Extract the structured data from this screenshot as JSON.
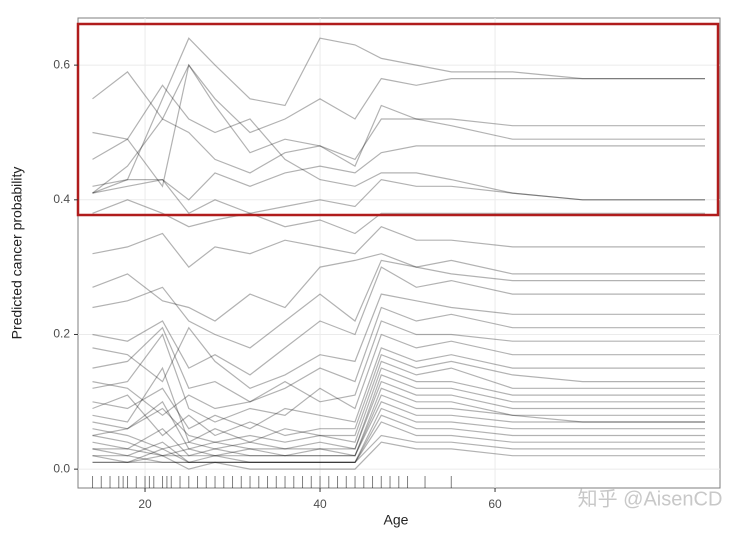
{
  "chart_data": {
    "type": "ice",
    "x_label": "Age",
    "y_label": "Predicted cancer probability",
    "watermark": "知乎 @AisenCD",
    "x": [
      14,
      18,
      22,
      25,
      28,
      32,
      36,
      40,
      44,
      47,
      51,
      55,
      62,
      70,
      84
    ],
    "line_color": "#000000",
    "line_opacity": 0.3,
    "grid": true,
    "xlim": [
      12.34,
      85.71
    ],
    "xticks": [
      20,
      40,
      60
    ],
    "ylim": [
      -0.028,
      0.67
    ],
    "yticks": [
      {
        "value": 0,
        "label": "0.0"
      },
      0.2,
      0.4,
      0.6
    ],
    "rug": [
      14,
      15,
      16,
      17,
      17.5,
      18,
      19,
      20,
      20.5,
      21,
      22,
      22.5,
      23,
      24,
      25,
      26,
      27,
      28,
      29,
      30,
      31,
      32,
      33,
      34,
      35,
      36,
      37,
      38,
      39,
      40,
      41,
      42,
      43,
      44,
      45,
      46,
      47,
      48,
      49,
      50,
      52,
      55
    ],
    "series": [
      {
        "values": [
          0.55,
          0.59,
          0.52,
          0.6,
          0.55,
          0.5,
          0.52,
          0.55,
          0.52,
          0.58,
          0.57,
          0.58,
          0.58,
          0.58,
          0.58
        ]
      },
      {
        "values": [
          0.41,
          0.43,
          0.55,
          0.64,
          0.6,
          0.55,
          0.54,
          0.64,
          0.63,
          0.61,
          0.6,
          0.59,
          0.59,
          0.58,
          0.58
        ]
      },
      {
        "values": [
          0.5,
          0.49,
          0.42,
          0.6,
          0.54,
          0.47,
          0.49,
          0.48,
          0.45,
          0.54,
          0.52,
          0.52,
          0.51,
          0.51,
          0.51
        ]
      },
      {
        "values": [
          0.41,
          0.45,
          0.52,
          0.5,
          0.46,
          0.44,
          0.47,
          0.48,
          0.46,
          0.52,
          0.52,
          0.51,
          0.49,
          0.49,
          0.49
        ]
      },
      {
        "values": [
          0.42,
          0.43,
          0.43,
          0.4,
          0.44,
          0.42,
          0.44,
          0.45,
          0.44,
          0.47,
          0.48,
          0.48,
          0.48,
          0.48,
          0.48
        ]
      },
      {
        "values": [
          0.46,
          0.49,
          0.57,
          0.52,
          0.5,
          0.52,
          0.46,
          0.43,
          0.42,
          0.44,
          0.44,
          0.43,
          0.41,
          0.4,
          0.4
        ]
      },
      {
        "values": [
          0.41,
          0.42,
          0.43,
          0.38,
          0.4,
          0.38,
          0.39,
          0.4,
          0.39,
          0.43,
          0.42,
          0.42,
          0.41,
          0.4,
          0.4
        ]
      },
      {
        "values": [
          0.38,
          0.4,
          0.38,
          0.36,
          0.37,
          0.38,
          0.36,
          0.37,
          0.35,
          0.38,
          0.38,
          0.38,
          0.38,
          0.38,
          0.38
        ]
      },
      {
        "values": [
          0.32,
          0.33,
          0.35,
          0.3,
          0.33,
          0.32,
          0.34,
          0.33,
          0.32,
          0.36,
          0.34,
          0.34,
          0.33,
          0.33,
          0.33
        ]
      },
      {
        "values": [
          0.27,
          0.29,
          0.25,
          0.24,
          0.22,
          0.26,
          0.24,
          0.3,
          0.31,
          0.32,
          0.3,
          0.31,
          0.29,
          0.29,
          0.29
        ]
      },
      {
        "values": [
          0.24,
          0.25,
          0.27,
          0.22,
          0.2,
          0.18,
          0.22,
          0.26,
          0.22,
          0.31,
          0.3,
          0.29,
          0.28,
          0.28,
          0.28
        ]
      },
      {
        "values": [
          0.2,
          0.19,
          0.22,
          0.15,
          0.17,
          0.14,
          0.18,
          0.22,
          0.2,
          0.3,
          0.27,
          0.28,
          0.26,
          0.26,
          0.26
        ]
      },
      {
        "values": [
          0.18,
          0.17,
          0.13,
          0.21,
          0.16,
          0.12,
          0.14,
          0.17,
          0.16,
          0.26,
          0.25,
          0.24,
          0.23,
          0.23,
          0.23
        ]
      },
      {
        "values": [
          0.15,
          0.16,
          0.21,
          0.12,
          0.13,
          0.1,
          0.12,
          0.15,
          0.13,
          0.24,
          0.22,
          0.23,
          0.21,
          0.21,
          0.21
        ]
      },
      {
        "values": [
          0.13,
          0.12,
          0.08,
          0.11,
          0.09,
          0.1,
          0.13,
          0.1,
          0.11,
          0.22,
          0.2,
          0.2,
          0.19,
          0.19,
          0.19
        ]
      },
      {
        "values": [
          0.12,
          0.13,
          0.2,
          0.09,
          0.07,
          0.09,
          0.08,
          0.12,
          0.09,
          0.2,
          0.18,
          0.19,
          0.17,
          0.17,
          0.17
        ]
      },
      {
        "values": [
          0.1,
          0.09,
          0.12,
          0.06,
          0.08,
          0.06,
          0.09,
          0.08,
          0.07,
          0.18,
          0.16,
          0.17,
          0.15,
          0.15,
          0.15
        ]
      },
      {
        "values": [
          0.09,
          0.11,
          0.05,
          0.08,
          0.05,
          0.07,
          0.05,
          0.06,
          0.06,
          0.17,
          0.15,
          0.16,
          0.14,
          0.13,
          0.13
        ]
      },
      {
        "values": [
          0.08,
          0.07,
          0.15,
          0.04,
          0.06,
          0.04,
          0.06,
          0.05,
          0.05,
          0.16,
          0.14,
          0.15,
          0.12,
          0.12,
          0.12
        ]
      },
      {
        "values": [
          0.07,
          0.06,
          0.09,
          0.05,
          0.04,
          0.05,
          0.04,
          0.05,
          0.04,
          0.15,
          0.13,
          0.13,
          0.11,
          0.11,
          0.11
        ]
      },
      {
        "values": [
          0.06,
          0.05,
          0.03,
          0.04,
          0.03,
          0.04,
          0.03,
          0.04,
          0.03,
          0.14,
          0.12,
          0.12,
          0.1,
          0.1,
          0.1
        ]
      },
      {
        "values": [
          0.05,
          0.06,
          0.1,
          0.03,
          0.04,
          0.03,
          0.03,
          0.03,
          0.03,
          0.13,
          0.11,
          0.11,
          0.09,
          0.09,
          0.09
        ]
      },
      {
        "values": [
          0.05,
          0.04,
          0.02,
          0.03,
          0.02,
          0.03,
          0.02,
          0.03,
          0.02,
          0.12,
          0.1,
          0.1,
          0.08,
          0.08,
          0.08
        ]
      },
      {
        "values": [
          0.04,
          0.03,
          0.06,
          0.02,
          0.03,
          0.02,
          0.02,
          0.02,
          0.02,
          0.11,
          0.09,
          0.09,
          0.08,
          0.07,
          0.07
        ]
      },
      {
        "values": [
          0.03,
          0.03,
          0.02,
          0.02,
          0.02,
          0.02,
          0.02,
          0.02,
          0.02,
          0.1,
          0.08,
          0.08,
          0.07,
          0.07,
          0.07
        ]
      },
      {
        "values": [
          0.03,
          0.02,
          0.04,
          0.01,
          0.02,
          0.01,
          0.01,
          0.01,
          0.01,
          0.09,
          0.07,
          0.07,
          0.06,
          0.06,
          0.06
        ]
      },
      {
        "values": [
          0.02,
          0.02,
          0.01,
          0.01,
          0.01,
          0.01,
          0.01,
          0.01,
          0.01,
          0.08,
          0.06,
          0.06,
          0.05,
          0.05,
          0.05
        ]
      },
      {
        "values": [
          0.02,
          0.01,
          0.03,
          0.01,
          0.01,
          0.01,
          0.01,
          0.01,
          0.01,
          0.07,
          0.05,
          0.05,
          0.04,
          0.04,
          0.04
        ]
      },
      {
        "values": [
          0.01,
          0.01,
          0.01,
          0.01,
          0.01,
          0.01,
          0.01,
          0.01,
          0.01,
          0.05,
          0.04,
          0.04,
          0.03,
          0.03,
          0.03
        ]
      },
      {
        "values": [
          0.01,
          0.01,
          0.02,
          0.0,
          0.01,
          0.0,
          0.0,
          0.0,
          0.0,
          0.04,
          0.03,
          0.03,
          0.02,
          0.02,
          0.02
        ]
      }
    ]
  }
}
